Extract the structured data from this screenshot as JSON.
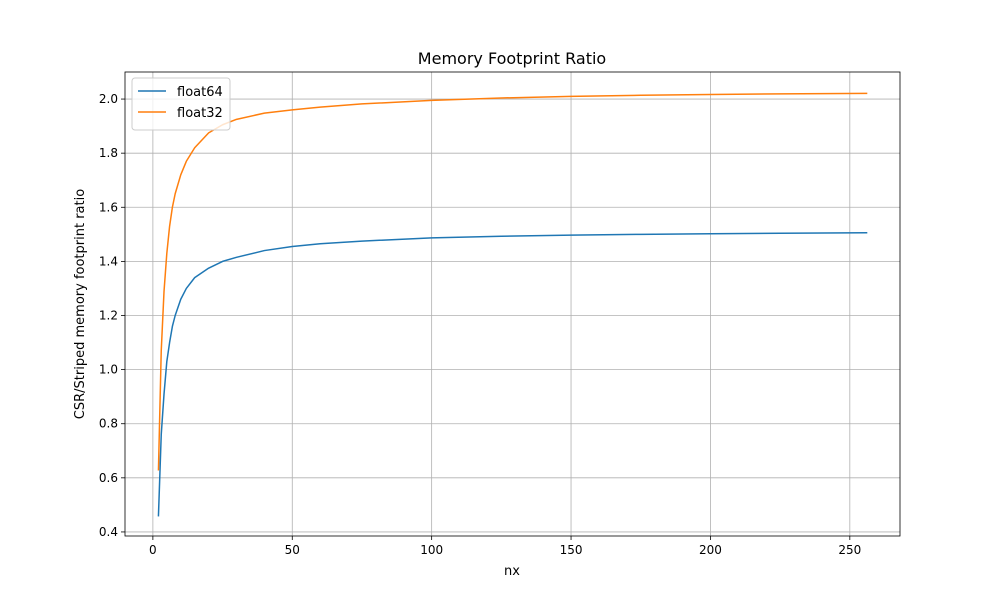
{
  "chart_data": {
    "type": "line",
    "title": "Memory Footprint Ratio",
    "xlabel": "nx",
    "ylabel": "CSR/Striped memory footprint ratio",
    "xlim": [
      -10,
      268
    ],
    "ylim": [
      0.385,
      2.1
    ],
    "xticks": [
      0,
      50,
      100,
      150,
      200,
      250
    ],
    "yticks": [
      0.4,
      0.6,
      0.8,
      1.0,
      1.2,
      1.4,
      1.6,
      1.8,
      2.0
    ],
    "xtick_labels": [
      "0",
      "50",
      "100",
      "150",
      "200",
      "250"
    ],
    "ytick_labels": [
      "0.4",
      "0.6",
      "0.8",
      "1.0",
      "1.2",
      "1.4",
      "1.6",
      "1.8",
      "2.0"
    ],
    "grid": true,
    "legend_position": "top-left",
    "series": [
      {
        "name": "float64",
        "color": "#1f77b4",
        "x": [
          2,
          3,
          4,
          5,
          6,
          7,
          8,
          10,
          12,
          15,
          20,
          25,
          30,
          40,
          50,
          60,
          75,
          100,
          125,
          150,
          175,
          200,
          225,
          256
        ],
        "y": [
          0.46,
          0.76,
          0.91,
          1.03,
          1.1,
          1.16,
          1.2,
          1.26,
          1.3,
          1.34,
          1.375,
          1.4,
          1.415,
          1.44,
          1.455,
          1.465,
          1.475,
          1.487,
          1.493,
          1.497,
          1.5,
          1.502,
          1.504,
          1.506
        ]
      },
      {
        "name": "float32",
        "color": "#ff7f0e",
        "x": [
          2,
          3,
          4,
          5,
          6,
          7,
          8,
          10,
          12,
          15,
          20,
          25,
          30,
          40,
          50,
          60,
          75,
          100,
          125,
          150,
          175,
          200,
          225,
          256
        ],
        "y": [
          0.63,
          1.07,
          1.29,
          1.43,
          1.53,
          1.6,
          1.65,
          1.72,
          1.77,
          1.82,
          1.875,
          1.905,
          1.925,
          1.948,
          1.96,
          1.97,
          1.982,
          1.995,
          2.004,
          2.01,
          2.014,
          2.017,
          2.019,
          2.021
        ]
      }
    ]
  }
}
